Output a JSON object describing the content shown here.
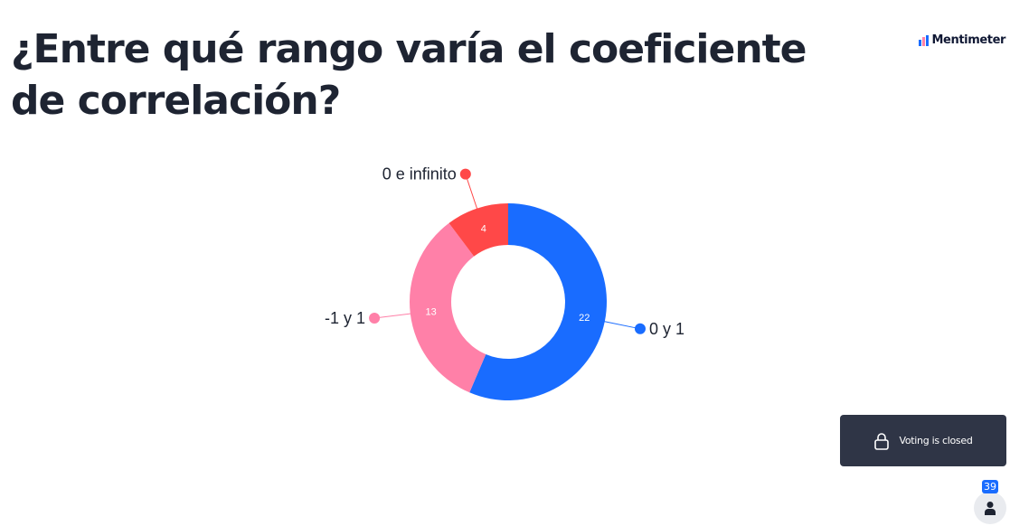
{
  "question": {
    "title": "¿Entre qué rango varía el coeficiente de correlación?"
  },
  "brand": {
    "name": "Mentimeter"
  },
  "status": {
    "voting": "Voting is closed",
    "participants": "39"
  },
  "colors": {
    "blue": "#196cff",
    "pink": "#ff80a8",
    "red": "#ff4848",
    "dark": "#2f3546",
    "title": "#1e2432"
  },
  "icons": {
    "lock": "lock-icon",
    "person": "person-icon",
    "logo": "mentimeter-logo-icon"
  },
  "chart_data": {
    "type": "pie",
    "variant": "donut",
    "title": "",
    "categories": [
      "0 y 1",
      "-1 y 1",
      "0 e infinito"
    ],
    "values": [
      22,
      13,
      4
    ],
    "colors": [
      "#196cff",
      "#ff80a8",
      "#ff4848"
    ],
    "direction": "clockwise from top"
  }
}
